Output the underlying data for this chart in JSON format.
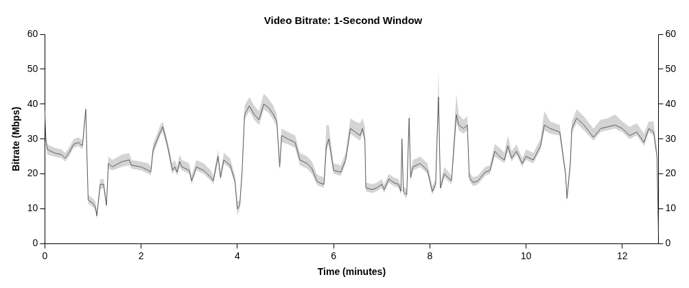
{
  "chart_data": {
    "type": "line",
    "title": "Video Bitrate: 1-Second Window",
    "xlabel": "Time (minutes)",
    "ylabel": "Bitrate (Mbps)",
    "xlim": [
      0,
      12.75
    ],
    "xticks": [
      0,
      2,
      4,
      6,
      8,
      10,
      12
    ],
    "ylim": [
      0,
      60
    ],
    "yticks": [
      0,
      10,
      20,
      30,
      40,
      50,
      60
    ],
    "y2lim": [
      0,
      60
    ],
    "y2ticks": [
      0,
      10,
      20,
      30,
      40,
      50,
      60
    ],
    "grid": false,
    "legend": false,
    "marker": "none",
    "line_style": "solid",
    "x": [
      0,
      0.02,
      0.05,
      0.2,
      0.35,
      0.42,
      0.5,
      0.6,
      0.7,
      0.78,
      0.85,
      0.9,
      1.0,
      1.05,
      1.08,
      1.15,
      1.22,
      1.28,
      1.32,
      1.4,
      1.6,
      1.75,
      1.8,
      2.0,
      2.15,
      2.2,
      2.25,
      2.4,
      2.45,
      2.55,
      2.65,
      2.7,
      2.75,
      2.8,
      2.85,
      3.0,
      3.05,
      3.15,
      3.3,
      3.45,
      3.5,
      3.6,
      3.65,
      3.72,
      3.85,
      3.95,
      4.0,
      4.05,
      4.1,
      4.15,
      4.25,
      4.35,
      4.45,
      4.55,
      4.65,
      4.75,
      4.82,
      4.88,
      4.92,
      5.05,
      5.2,
      5.3,
      5.45,
      5.55,
      5.65,
      5.7,
      5.8,
      5.85,
      5.9,
      6.0,
      6.15,
      6.25,
      6.35,
      6.45,
      6.55,
      6.6,
      6.65,
      6.67,
      6.8,
      6.9,
      7.0,
      7.05,
      7.15,
      7.25,
      7.35,
      7.4,
      7.42,
      7.45,
      7.52,
      7.57,
      7.6,
      7.65,
      7.8,
      7.95,
      8.05,
      8.12,
      8.18,
      8.22,
      8.3,
      8.45,
      8.55,
      8.6,
      8.7,
      8.78,
      8.82,
      8.9,
      9.0,
      9.15,
      9.25,
      9.35,
      9.45,
      9.55,
      9.62,
      9.7,
      9.8,
      9.92,
      10.0,
      10.15,
      10.3,
      10.38,
      10.5,
      10.7,
      10.82,
      10.85,
      10.92,
      10.95,
      11.05,
      11.2,
      11.4,
      11.55,
      11.7,
      11.85,
      12.0,
      12.15,
      12.3,
      12.45,
      12.55,
      12.65,
      12.72,
      12.75
    ],
    "series": [
      {
        "color": "#5a5a5a",
        "values": [
          38,
          30,
          27,
          26,
          25.5,
          24.5,
          26,
          28.5,
          29,
          28,
          38.5,
          12.5,
          11.5,
          10.5,
          8,
          17,
          17,
          11,
          23,
          22,
          23.5,
          24,
          22.5,
          22,
          21,
          20.5,
          27,
          32,
          33.5,
          28,
          21,
          22,
          20.5,
          23.5,
          22,
          21,
          18,
          22,
          21,
          19,
          18,
          25,
          19,
          24,
          22.5,
          18,
          10,
          11,
          21,
          37,
          39.5,
          37,
          35.5,
          40,
          39,
          37,
          35,
          22,
          31,
          30,
          29,
          24,
          23,
          21.5,
          18,
          17.5,
          17,
          28,
          30,
          21,
          20.5,
          24,
          33,
          32,
          31,
          33,
          30,
          16,
          15.5,
          16,
          17,
          15.5,
          18.5,
          17.5,
          17,
          15,
          30,
          15,
          14,
          36,
          19,
          22,
          23,
          21,
          15,
          17,
          42,
          16,
          20,
          18,
          37,
          34,
          33,
          34,
          19,
          17.5,
          18,
          20.5,
          21,
          26.5,
          25,
          24,
          28,
          24.5,
          26.5,
          23,
          25,
          24,
          28,
          34,
          33,
          32,
          20,
          13,
          23,
          33,
          36,
          34,
          30.5,
          33,
          33.5,
          34,
          33,
          31,
          32,
          29,
          33,
          32,
          25,
          3
        ],
        "lower": [
          36,
          29,
          25.5,
          25,
          24.5,
          23.5,
          25,
          27.5,
          28,
          27,
          37,
          11.5,
          10.5,
          9.5,
          7,
          15.5,
          16,
          10,
          21.5,
          21,
          22,
          22.5,
          21.5,
          21,
          20,
          19.5,
          25.5,
          31,
          32,
          27,
          20,
          21,
          19.5,
          22,
          21,
          20,
          17,
          21,
          20,
          18,
          17,
          24,
          18,
          23,
          21.5,
          17,
          8,
          10,
          20,
          35.5,
          38,
          35.5,
          34,
          38.5,
          37.5,
          35.5,
          33.5,
          21,
          29,
          28.5,
          27.5,
          22.5,
          21.5,
          20,
          17,
          16.5,
          16,
          26.5,
          28.5,
          20,
          19.5,
          23,
          31.5,
          30.5,
          29.5,
          31.5,
          29,
          15,
          14.5,
          15,
          16,
          14.5,
          17.5,
          16.5,
          16,
          14,
          28,
          14,
          13,
          34,
          18,
          21,
          22,
          20,
          14,
          16,
          40,
          15,
          19,
          17,
          35,
          32.5,
          31.5,
          32.5,
          18,
          16.5,
          17,
          19.5,
          20,
          25,
          24,
          23,
          26.5,
          23.5,
          25.5,
          22,
          24,
          23,
          27,
          32.5,
          31.5,
          31,
          19,
          12,
          22,
          31.5,
          34.5,
          32.5,
          29.5,
          32,
          32.5,
          33,
          32,
          30,
          31,
          28,
          32,
          31,
          24,
          2
        ],
        "upper": [
          40,
          32,
          28.5,
          27.5,
          27,
          26,
          27.5,
          30,
          30.5,
          29.5,
          40,
          14,
          13,
          12,
          9,
          18.5,
          18.5,
          12.5,
          25,
          24,
          25.5,
          26,
          24,
          23.5,
          23,
          22,
          28.5,
          34,
          35,
          29.5,
          23,
          24,
          22,
          25.5,
          24,
          23,
          19.5,
          24,
          23,
          21,
          19.5,
          27,
          20.5,
          26,
          24.5,
          19.5,
          12,
          12.5,
          22.5,
          39.5,
          42,
          39.5,
          38,
          43,
          41.5,
          39.5,
          37,
          23.5,
          33,
          32,
          31,
          26,
          25,
          23.5,
          20,
          19.5,
          19,
          34,
          34,
          23,
          22.5,
          26,
          36,
          35,
          34.5,
          36,
          33.5,
          17.5,
          17,
          17.5,
          18.5,
          17,
          20,
          19,
          18.5,
          16.5,
          32,
          16.5,
          15.5,
          38,
          20.5,
          24,
          25,
          23,
          16.5,
          18.5,
          50,
          17.5,
          22,
          19.5,
          43,
          37,
          35.5,
          36.5,
          20.5,
          19,
          19.5,
          22,
          22.5,
          28.5,
          27.5,
          26,
          31,
          26.5,
          28.5,
          24.5,
          27,
          26,
          30,
          38,
          35,
          34,
          21.5,
          14.5,
          25,
          35,
          38.5,
          36.5,
          33,
          35.5,
          36,
          37,
          35,
          33.5,
          34.5,
          31.5,
          35,
          35,
          27,
          4
        ]
      }
    ]
  }
}
